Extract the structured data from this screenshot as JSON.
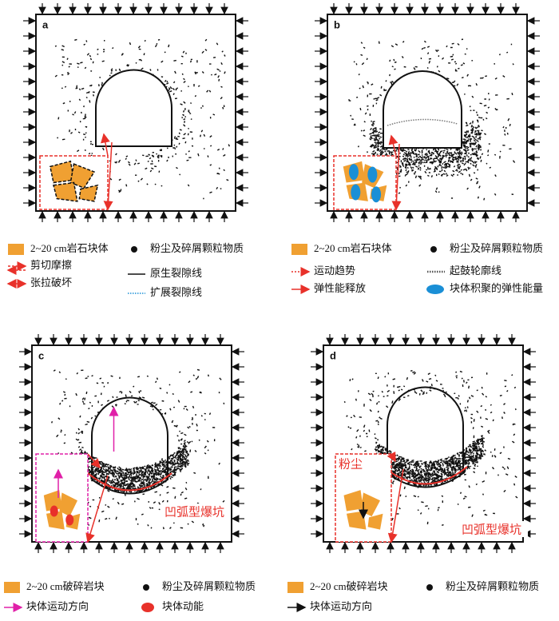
{
  "panels": [
    {
      "label": "a",
      "legend": [
        "2~20 cm岩石块体",
        "粉尘及碎屑颗粒物质",
        "剪切摩擦",
        "原生裂隙线",
        "张拉破坏",
        "扩展裂隙线"
      ]
    },
    {
      "label": "b",
      "legend": [
        "2~20 cm岩石块体",
        "粉尘及碎屑颗粒物质",
        "运动趋势",
        "起鼓轮廓线",
        "弹性能释放",
        "块体积聚的弹性能量"
      ]
    },
    {
      "label": "c",
      "legend": [
        "2~20 cm破碎岩块",
        "粉尘及碎屑颗粒物质",
        "块体运动方向",
        "块体动能"
      ],
      "annotations": [
        "凹弧型爆坑"
      ]
    },
    {
      "label": "d",
      "legend": [
        "2~20 cm破碎岩块",
        "粉尘及碎屑颗粒物质",
        "块体运动方向"
      ],
      "annotations": [
        "粉尘",
        "凹弧型爆坑"
      ]
    }
  ]
}
